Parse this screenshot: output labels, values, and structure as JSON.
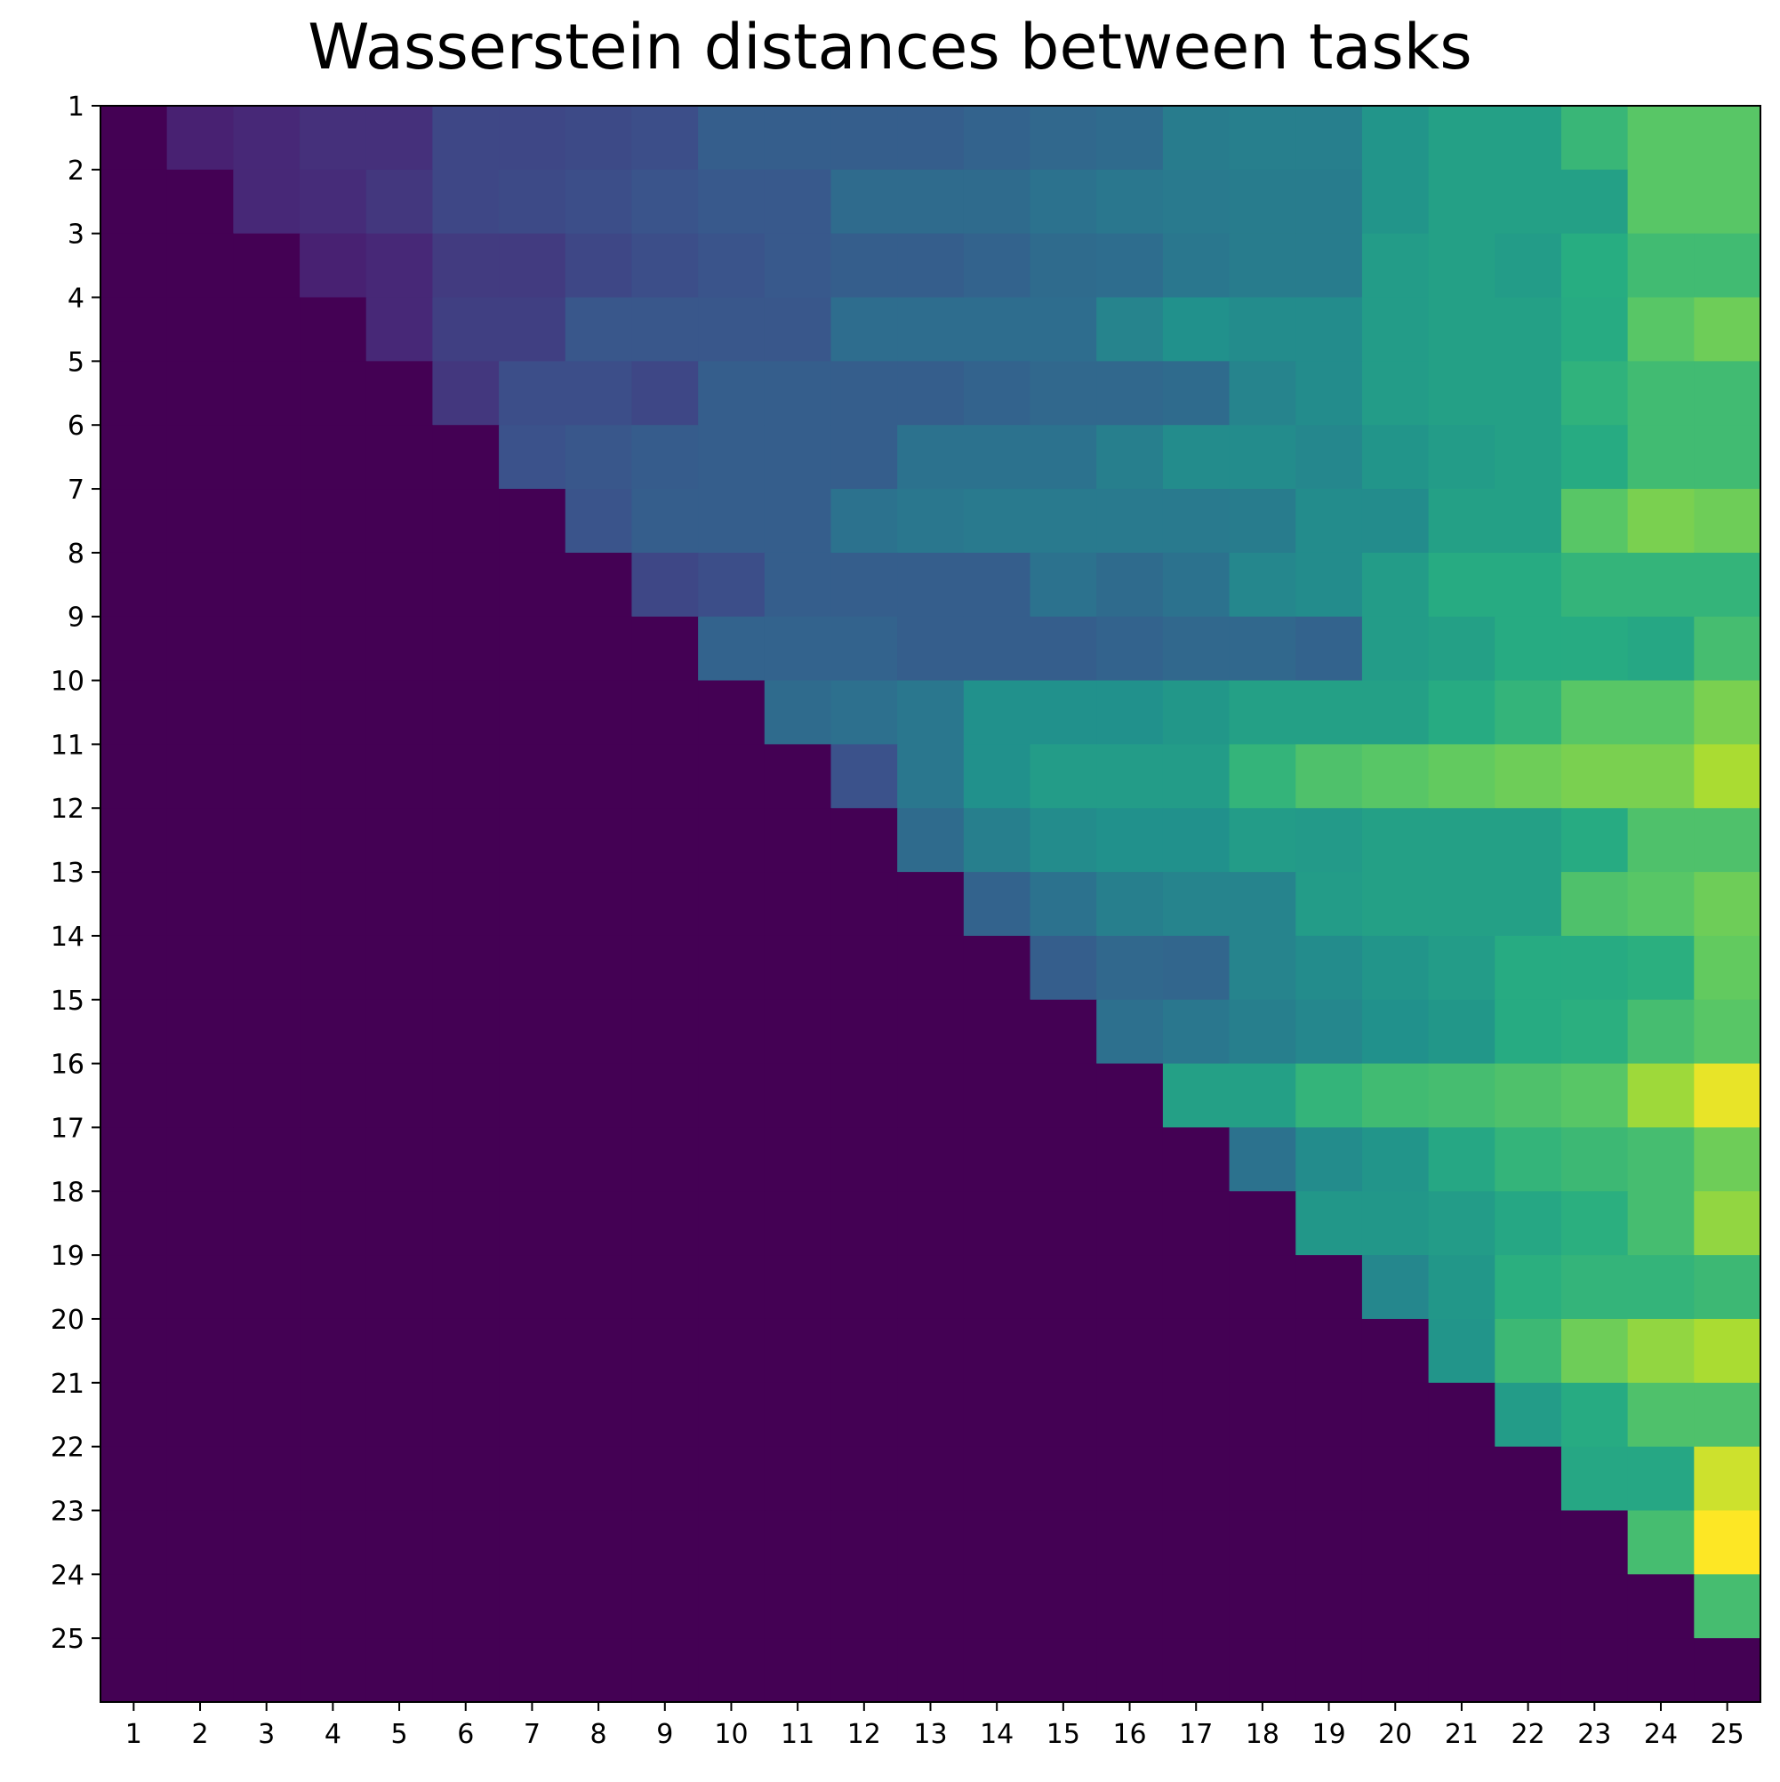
{
  "chart_data": {
    "type": "heatmap",
    "title": "Wasserstein distances between tasks",
    "xlabel": "",
    "ylabel": "",
    "x_categories": [
      "1",
      "2",
      "3",
      "4",
      "5",
      "6",
      "7",
      "8",
      "9",
      "10",
      "11",
      "12",
      "13",
      "14",
      "15",
      "16",
      "17",
      "18",
      "19",
      "20",
      "21",
      "22",
      "23",
      "24",
      "25"
    ],
    "y_categories": [
      "1",
      "2",
      "3",
      "4",
      "5",
      "6",
      "7",
      "8",
      "9",
      "10",
      "11",
      "12",
      "13",
      "14",
      "15",
      "16",
      "17",
      "18",
      "19",
      "20",
      "21",
      "22",
      "23",
      "24",
      "25"
    ],
    "colormap": "viridis",
    "value_range": [
      0,
      1
    ],
    "grid": false,
    "legend": "none",
    "values": [
      [
        0,
        0.12,
        0.14,
        0.16,
        0.16,
        0.22,
        0.22,
        0.23,
        0.24,
        0.3,
        0.3,
        0.3,
        0.3,
        0.32,
        0.34,
        0.35,
        0.42,
        0.43,
        0.43,
        0.52,
        0.57,
        0.57,
        0.67,
        0.74,
        0.74
      ],
      [
        0,
        0,
        0.14,
        0.15,
        0.18,
        0.22,
        0.23,
        0.24,
        0.26,
        0.28,
        0.28,
        0.35,
        0.35,
        0.35,
        0.38,
        0.4,
        0.41,
        0.42,
        0.42,
        0.52,
        0.57,
        0.57,
        0.57,
        0.74,
        0.74
      ],
      [
        0,
        0,
        0,
        0.12,
        0.14,
        0.19,
        0.19,
        0.22,
        0.24,
        0.26,
        0.28,
        0.3,
        0.3,
        0.32,
        0.35,
        0.36,
        0.4,
        0.42,
        0.42,
        0.55,
        0.57,
        0.55,
        0.63,
        0.69,
        0.69
      ],
      [
        0,
        0,
        0,
        0,
        0.14,
        0.2,
        0.2,
        0.27,
        0.27,
        0.27,
        0.27,
        0.36,
        0.36,
        0.36,
        0.36,
        0.45,
        0.5,
        0.48,
        0.48,
        0.55,
        0.57,
        0.57,
        0.62,
        0.74,
        0.78
      ],
      [
        0,
        0,
        0,
        0,
        0,
        0.18,
        0.24,
        0.24,
        0.22,
        0.3,
        0.3,
        0.3,
        0.3,
        0.32,
        0.34,
        0.34,
        0.35,
        0.45,
        0.48,
        0.55,
        0.57,
        0.57,
        0.65,
        0.69,
        0.69
      ],
      [
        0,
        0,
        0,
        0,
        0,
        0,
        0.25,
        0.27,
        0.29,
        0.3,
        0.3,
        0.3,
        0.38,
        0.38,
        0.38,
        0.43,
        0.48,
        0.48,
        0.46,
        0.52,
        0.55,
        0.57,
        0.62,
        0.69,
        0.69
      ],
      [
        0,
        0,
        0,
        0,
        0,
        0,
        0,
        0.26,
        0.3,
        0.3,
        0.3,
        0.38,
        0.4,
        0.41,
        0.41,
        0.41,
        0.41,
        0.42,
        0.48,
        0.48,
        0.57,
        0.57,
        0.74,
        0.8,
        0.78
      ],
      [
        0,
        0,
        0,
        0,
        0,
        0,
        0,
        0,
        0.22,
        0.24,
        0.3,
        0.3,
        0.3,
        0.3,
        0.38,
        0.35,
        0.38,
        0.46,
        0.48,
        0.55,
        0.62,
        0.62,
        0.66,
        0.66,
        0.66
      ],
      [
        0,
        0,
        0,
        0,
        0,
        0,
        0,
        0,
        0,
        0.32,
        0.32,
        0.32,
        0.3,
        0.3,
        0.3,
        0.32,
        0.34,
        0.34,
        0.32,
        0.55,
        0.57,
        0.62,
        0.62,
        0.6,
        0.7
      ],
      [
        0,
        0,
        0,
        0,
        0,
        0,
        0,
        0,
        0,
        0,
        0.35,
        0.37,
        0.4,
        0.5,
        0.5,
        0.5,
        0.53,
        0.57,
        0.57,
        0.57,
        0.62,
        0.66,
        0.74,
        0.74,
        0.8
      ],
      [
        0,
        0,
        0,
        0,
        0,
        0,
        0,
        0,
        0,
        0,
        0,
        0.25,
        0.4,
        0.5,
        0.55,
        0.55,
        0.55,
        0.66,
        0.72,
        0.74,
        0.76,
        0.78,
        0.8,
        0.8,
        0.88
      ],
      [
        0,
        0,
        0,
        0,
        0,
        0,
        0,
        0,
        0,
        0,
        0,
        0,
        0.35,
        0.43,
        0.48,
        0.5,
        0.5,
        0.55,
        0.54,
        0.57,
        0.57,
        0.57,
        0.62,
        0.72,
        0.72
      ],
      [
        0,
        0,
        0,
        0,
        0,
        0,
        0,
        0,
        0,
        0,
        0,
        0,
        0,
        0.32,
        0.38,
        0.43,
        0.45,
        0.45,
        0.55,
        0.57,
        0.57,
        0.57,
        0.72,
        0.74,
        0.78
      ],
      [
        0,
        0,
        0,
        0,
        0,
        0,
        0,
        0,
        0,
        0,
        0,
        0,
        0,
        0,
        0.3,
        0.34,
        0.33,
        0.45,
        0.48,
        0.52,
        0.55,
        0.62,
        0.62,
        0.64,
        0.76
      ],
      [
        0,
        0,
        0,
        0,
        0,
        0,
        0,
        0,
        0,
        0,
        0,
        0,
        0,
        0,
        0,
        0.37,
        0.4,
        0.43,
        0.46,
        0.5,
        0.53,
        0.62,
        0.64,
        0.7,
        0.74
      ],
      [
        0,
        0,
        0,
        0,
        0,
        0,
        0,
        0,
        0,
        0,
        0,
        0,
        0,
        0,
        0,
        0,
        0.57,
        0.57,
        0.66,
        0.69,
        0.7,
        0.72,
        0.74,
        0.86,
        0.97
      ],
      [
        0,
        0,
        0,
        0,
        0,
        0,
        0,
        0,
        0,
        0,
        0,
        0,
        0,
        0,
        0,
        0,
        0,
        0.38,
        0.48,
        0.52,
        0.6,
        0.66,
        0.68,
        0.7,
        0.78
      ],
      [
        0,
        0,
        0,
        0,
        0,
        0,
        0,
        0,
        0,
        0,
        0,
        0,
        0,
        0,
        0,
        0,
        0,
        0,
        0.53,
        0.53,
        0.55,
        0.6,
        0.64,
        0.7,
        0.84
      ],
      [
        0,
        0,
        0,
        0,
        0,
        0,
        0,
        0,
        0,
        0,
        0,
        0,
        0,
        0,
        0,
        0,
        0,
        0,
        0,
        0.46,
        0.53,
        0.64,
        0.66,
        0.66,
        0.68
      ],
      [
        0,
        0,
        0,
        0,
        0,
        0,
        0,
        0,
        0,
        0,
        0,
        0,
        0,
        0,
        0,
        0,
        0,
        0,
        0,
        0,
        0.52,
        0.68,
        0.78,
        0.84,
        0.88
      ],
      [
        0,
        0,
        0,
        0,
        0,
        0,
        0,
        0,
        0,
        0,
        0,
        0,
        0,
        0,
        0,
        0,
        0,
        0,
        0,
        0,
        0,
        0.55,
        0.62,
        0.72,
        0.72
      ],
      [
        0,
        0,
        0,
        0,
        0,
        0,
        0,
        0,
        0,
        0,
        0,
        0,
        0,
        0,
        0,
        0,
        0,
        0,
        0,
        0,
        0,
        0,
        0.6,
        0.6,
        0.93
      ],
      [
        0,
        0,
        0,
        0,
        0,
        0,
        0,
        0,
        0,
        0,
        0,
        0,
        0,
        0,
        0,
        0,
        0,
        0,
        0,
        0,
        0,
        0,
        0,
        0.7,
        1.0
      ],
      [
        0,
        0,
        0,
        0,
        0,
        0,
        0,
        0,
        0,
        0,
        0,
        0,
        0,
        0,
        0,
        0,
        0,
        0,
        0,
        0,
        0,
        0,
        0,
        0,
        0.7
      ],
      [
        0,
        0,
        0,
        0,
        0,
        0,
        0,
        0,
        0,
        0,
        0,
        0,
        0,
        0,
        0,
        0,
        0,
        0,
        0,
        0,
        0,
        0,
        0,
        0,
        0
      ]
    ]
  }
}
